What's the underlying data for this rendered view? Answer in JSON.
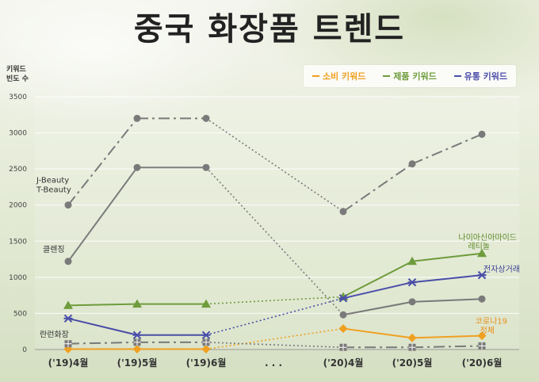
{
  "title": "중국 화장품 트렌드",
  "legend": [
    {
      "label": "소비 키워드",
      "color": "#f0a020"
    },
    {
      "label": "제품 키워드",
      "color": "#6e9c3c"
    },
    {
      "label": "유통 키워드",
      "color": "#4a4ea8"
    }
  ],
  "chart_data": {
    "type": "line",
    "ylabel": "키워드\n빈도 수",
    "yticks": [
      0,
      500,
      1000,
      1500,
      2000,
      2500,
      3000,
      3500
    ],
    "ylim": [
      0,
      3500
    ],
    "categories": [
      "('19)4월",
      "('19)5월",
      "('19)6월",
      ". . .",
      "('20)4월",
      "('20)5월",
      "('20)6월"
    ],
    "series": [
      {
        "name": "J-Beauty T-Beauty",
        "group": "제품 키워드",
        "color": "#7a7a7a",
        "style": "dashdot",
        "marker": "circle",
        "values": [
          2000,
          3200,
          3200,
          null,
          1910,
          2570,
          2980
        ]
      },
      {
        "name": "클렌징",
        "group": "제품 키워드",
        "color": "#7a7a7a",
        "style": "solid",
        "marker": "circle",
        "values": [
          1220,
          2520,
          2520,
          null,
          480,
          660,
          700
        ]
      },
      {
        "name": "나이아신아마이드 레티놀",
        "group": "제품 키워드",
        "color": "#6e9c3c",
        "style": "solid",
        "marker": "triangle",
        "values": [
          610,
          630,
          630,
          null,
          730,
          1220,
          1330
        ]
      },
      {
        "name": "전자상거래",
        "group": "유통 키워드",
        "color": "#4a4ea8",
        "style": "solid",
        "marker": "star",
        "values": [
          430,
          200,
          200,
          null,
          710,
          930,
          1030
        ]
      },
      {
        "name": "코로나19 정체",
        "group": "소비 키워드",
        "color": "#f0a020",
        "style": "solid",
        "marker": "diamond",
        "values": [
          5,
          5,
          5,
          null,
          290,
          160,
          190
        ]
      },
      {
        "name": "란런화장",
        "group": "제품 키워드",
        "color": "#7a7a7a",
        "style": "dashdot",
        "marker": "square",
        "values": [
          80,
          100,
          100,
          null,
          30,
          30,
          50
        ]
      }
    ],
    "labels": [
      {
        "text": "J-Beauty",
        "series": 0,
        "color": "#333333"
      },
      {
        "text": "T-Beauty",
        "series": 0,
        "color": "#333333"
      },
      {
        "text": "클렌징",
        "series": 1,
        "color": "#333333"
      },
      {
        "text": "란런화장",
        "series": 5,
        "color": "#333333"
      },
      {
        "text": "나이아신아마이드",
        "series": 2,
        "color": "#5f8a2c"
      },
      {
        "text": "레티놀",
        "series": 2,
        "color": "#5f8a2c"
      },
      {
        "text": "전자상거래",
        "series": 3,
        "color": "#3d4296"
      },
      {
        "text": "코로나19",
        "series": 4,
        "color": "#e8901a"
      },
      {
        "text": "정체",
        "series": 4,
        "color": "#e8901a"
      }
    ],
    "grid": true,
    "legend_position": "top-right"
  }
}
